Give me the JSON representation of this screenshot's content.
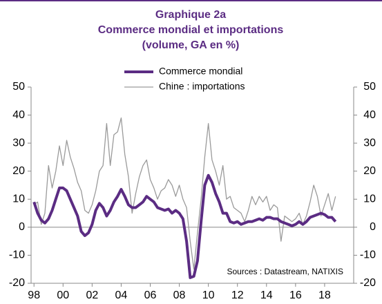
{
  "chart_data": {
    "type": "line",
    "title": "Graphique 2a",
    "subtitle": "Commerce mondial et importations",
    "subtitle2": "(volume, GA en %)",
    "annotation": "Sources : Datastream, NATIXIS",
    "x": [
      1998,
      1998.25,
      1998.5,
      1998.75,
      1999,
      1999.25,
      1999.5,
      1999.75,
      2000,
      2000.25,
      2000.5,
      2000.75,
      2001,
      2001.25,
      2001.5,
      2001.75,
      2002,
      2002.25,
      2002.5,
      2002.75,
      2003,
      2003.25,
      2003.5,
      2003.75,
      2004,
      2004.25,
      2004.5,
      2004.75,
      2005,
      2005.25,
      2005.5,
      2005.75,
      2006,
      2006.25,
      2006.5,
      2006.75,
      2007,
      2007.25,
      2007.5,
      2007.75,
      2008,
      2008.25,
      2008.5,
      2008.75,
      2009,
      2009.25,
      2009.5,
      2009.75,
      2010,
      2010.25,
      2010.5,
      2010.75,
      2011,
      2011.25,
      2011.5,
      2011.75,
      2012,
      2012.25,
      2012.5,
      2012.75,
      2013,
      2013.25,
      2013.5,
      2013.75,
      2014,
      2014.25,
      2014.5,
      2014.75,
      2015,
      2015.25,
      2015.5,
      2015.75,
      2016,
      2016.25,
      2016.5,
      2016.75,
      2017,
      2017.25,
      2017.5,
      2017.75,
      2018,
      2018.25,
      2018.5,
      2018.75
    ],
    "series": [
      {
        "name": "Commerce mondial",
        "color": "#5b2c83",
        "width": 4,
        "values": [
          9,
          5,
          2.5,
          1.5,
          3,
          6,
          10,
          14,
          14,
          13,
          10,
          7,
          4,
          -1.5,
          -3,
          -2,
          1,
          6,
          8.5,
          7,
          4,
          6,
          9,
          11,
          13.5,
          11,
          8,
          7,
          7,
          8,
          9,
          11,
          10,
          9,
          7,
          6.5,
          6,
          6.5,
          5,
          6,
          5,
          3,
          -5,
          -18,
          -17.5,
          -12,
          2,
          15,
          18.5,
          16,
          12,
          9,
          5,
          5,
          2,
          1.5,
          2,
          1,
          1.5,
          2,
          2,
          2.5,
          3,
          2.5,
          3.5,
          3.5,
          3,
          3,
          2,
          1.5,
          1,
          0.5,
          1,
          2,
          1,
          2,
          3.5,
          4,
          4.5,
          5,
          4.5,
          3.5,
          3.5,
          2
        ]
      },
      {
        "name": "Chine : importations",
        "color": "#9a9a9a",
        "width": 1.3,
        "values": [
          8,
          9,
          1,
          5,
          22,
          14,
          20,
          29,
          22,
          31,
          25,
          21,
          16,
          13,
          6,
          5,
          8,
          13,
          20,
          22,
          37,
          22,
          33,
          34,
          39,
          26,
          18,
          5,
          12,
          18,
          22,
          24,
          17,
          14,
          10,
          13,
          14,
          17,
          15,
          11,
          15,
          10,
          7,
          -5,
          -15,
          -2,
          10,
          25,
          37,
          24,
          20,
          15,
          22,
          10,
          11,
          7,
          6,
          5,
          2,
          6,
          11,
          8,
          11,
          9,
          11,
          6,
          8,
          7,
          -5,
          4,
          3,
          2,
          3,
          5,
          1,
          4,
          9,
          15,
          11,
          4,
          8,
          12,
          6,
          11
        ]
      }
    ],
    "xlim": [
      1997.8,
      2020
    ],
    "xticks": [
      {
        "value": 1998,
        "label": "98"
      },
      {
        "value": 2000,
        "label": "00"
      },
      {
        "value": 2002,
        "label": "02"
      },
      {
        "value": 2004,
        "label": "04"
      },
      {
        "value": 2006,
        "label": "06"
      },
      {
        "value": 2008,
        "label": "08"
      },
      {
        "value": 2010,
        "label": "10"
      },
      {
        "value": 2012,
        "label": "12"
      },
      {
        "value": 2014,
        "label": "14"
      },
      {
        "value": 2016,
        "label": "16"
      },
      {
        "value": 2018,
        "label": "18"
      }
    ],
    "ylim": [
      -20,
      50
    ],
    "yticks": [
      -20,
      -10,
      0,
      10,
      20,
      30,
      40,
      50
    ],
    "y2lim": [
      -20,
      50
    ],
    "y2ticks": [
      -20,
      -10,
      0,
      10,
      20,
      30,
      40,
      50
    ]
  }
}
